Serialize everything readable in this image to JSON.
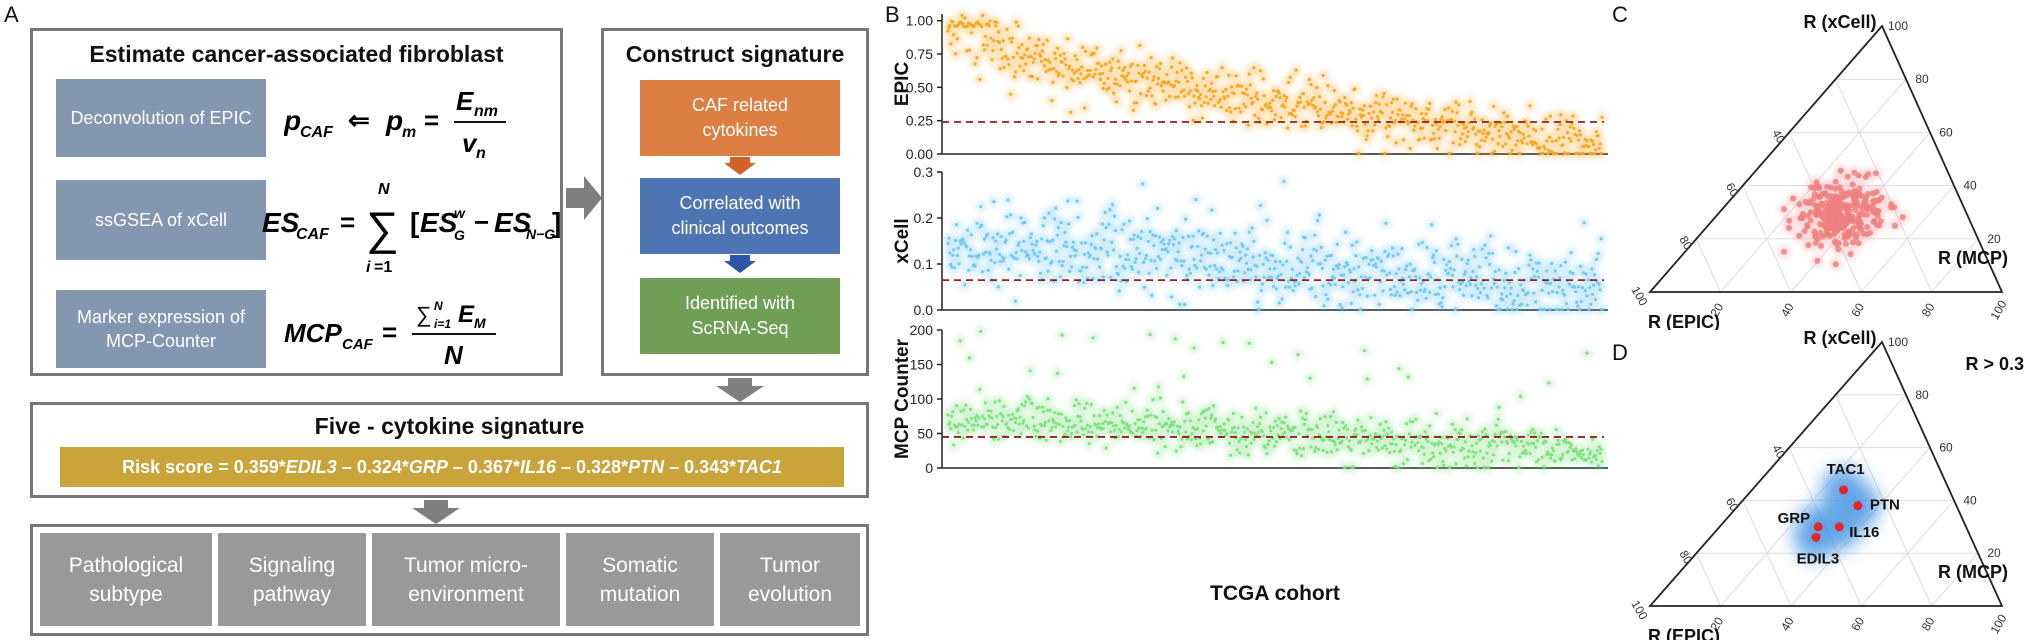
{
  "panel_labels": {
    "a": "A",
    "b": "B",
    "c": "C",
    "d": "D"
  },
  "panel_a": {
    "estimate_title": "Estimate cancer-associated fibroblast",
    "methods": [
      {
        "label": "Deconvolution of EPIC"
      },
      {
        "label": "ssGSEA of xCell"
      },
      {
        "label": "Marker expression of MCP-Counter"
      }
    ],
    "construct_title": "Construct signature",
    "construct_steps": [
      {
        "label": "CAF related cytokines",
        "color": "#dd7e43"
      },
      {
        "label": "Correlated with clinical outcomes",
        "color": "#4f74b4"
      },
      {
        "label": "Identified with ScRNA-Seq",
        "color": "#6f9e55"
      }
    ],
    "five_title": "Five - cytokine signature",
    "risk_prefix": "Risk score = ",
    "risk_terms": [
      {
        "coef": "0.359*",
        "gene": "EDIL3",
        "sep": " – "
      },
      {
        "coef": "0.324*",
        "gene": "GRP",
        "sep": " – "
      },
      {
        "coef": "0.367*",
        "gene": "IL16",
        "sep": " – "
      },
      {
        "coef": "0.328*",
        "gene": "PTN",
        "sep": " – "
      },
      {
        "coef": "0.343*",
        "gene": "TAC1",
        "sep": ""
      }
    ],
    "analyses": [
      {
        "line1": "Pathological",
        "line2": "subtype"
      },
      {
        "line1": "Signaling",
        "line2": "pathway"
      },
      {
        "line1": "Tumor micro-",
        "line2": "environment"
      },
      {
        "line1": "Somatic",
        "line2": "mutation"
      },
      {
        "line1": "Tumor",
        "line2": "evolution"
      }
    ],
    "colors": {
      "method_box": "#8497b0",
      "risk_box": "#c8a43a",
      "analysis_box": "#999999",
      "frame": "#777777",
      "arrow": "#7f7f7f"
    }
  },
  "chart_data": [
    {
      "type": "scatter",
      "title": "",
      "ylabel": "EPIC",
      "xlabel": "TCGA cohort",
      "ylim": [
        0,
        1.05
      ],
      "yticks": [
        "0.00",
        "0.25",
        "0.50",
        "0.75",
        "1.00"
      ],
      "ytick_values": [
        0,
        0.25,
        0.5,
        0.75,
        1.0
      ],
      "cutoff": 0.24,
      "n_points": 700,
      "trend": {
        "start": 0.92,
        "end": 0.06
      },
      "color": "#f5a623"
    },
    {
      "type": "scatter",
      "ylabel": "xCell",
      "ylim": [
        0,
        0.3
      ],
      "yticks": [
        "0.0",
        "0.1",
        "0.2",
        "0.3"
      ],
      "ytick_values": [
        0,
        0.1,
        0.2,
        0.3
      ],
      "cutoff": 0.065,
      "n_points": 700,
      "trend": {
        "start": 0.15,
        "end": 0.04
      },
      "color": "#71c8ee"
    },
    {
      "type": "scatter",
      "ylabel": "MCP Counter",
      "ylim": [
        0,
        200
      ],
      "yticks": [
        "0",
        "50",
        "100",
        "150",
        "200"
      ],
      "ytick_values": [
        0,
        50,
        100,
        150,
        200
      ],
      "cutoff": 45,
      "n_points": 700,
      "trend": {
        "start": 75,
        "end": 25
      },
      "color": "#7fe07f"
    }
  ],
  "panel_c": {
    "top_label": "R (xCell)",
    "right_label": "R (MCP)",
    "left_label": "R (EPIC)",
    "left_ticks": [
      "100",
      "80",
      "60",
      "40"
    ],
    "right_ticks": [
      "100",
      "80",
      "60",
      "40",
      "20"
    ],
    "bottom_ticks": [
      "20",
      "40",
      "60",
      "80",
      "100"
    ],
    "center": [
      0.36,
      0.3,
      0.34
    ],
    "n_points": 300,
    "color": "#f08080"
  },
  "panel_d": {
    "top_label": "R (xCell)",
    "right_label": "R (MCP)",
    "left_label": "R (EPIC)",
    "threshold_label": "R > 0.3",
    "left_ticks": [
      "100",
      "80",
      "60",
      "40"
    ],
    "right_ticks": [
      "100",
      "80",
      "60",
      "40",
      "20"
    ],
    "bottom_ticks": [
      "20",
      "40",
      "60",
      "80",
      "100"
    ],
    "genes": [
      {
        "name": "TAC1",
        "epic": 0.3,
        "xcell": 0.44,
        "mcp": 0.26
      },
      {
        "name": "PTN",
        "epic": 0.28,
        "xcell": 0.38,
        "mcp": 0.34
      },
      {
        "name": "GRP",
        "epic": 0.42,
        "xcell": 0.3,
        "mcp": 0.28
      },
      {
        "name": "IL16",
        "epic": 0.36,
        "xcell": 0.3,
        "mcp": 0.34
      },
      {
        "name": "EDIL3",
        "epic": 0.44,
        "xcell": 0.26,
        "mcp": 0.3
      }
    ],
    "blob_color": "#3a8fe0",
    "point_color": "#e3262a"
  }
}
